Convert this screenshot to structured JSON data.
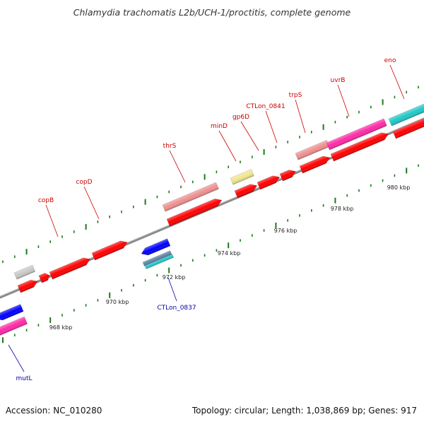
{
  "title": "Chlamydia trachomatis L2b/UCH-1/proctitis, complete genome",
  "footer": {
    "accession": "Accession: NC_010280",
    "summary": "Topology: circular; Length: 1,038,869 bp; Genes: 917"
  },
  "colors": {
    "backbone": "#8c8c8c",
    "ticks": "#1a7a1a",
    "label_forward": "#cc0000",
    "label_reverse": "#0000aa",
    "red": "#ff0000",
    "pink": "#f09090",
    "magenta": "#ff2aa8",
    "gray": "#c8c8c8",
    "yellow": "#f0e68c",
    "cyan": "#20c8c8",
    "blue": "#0000ff",
    "steel": "#5f84a8"
  },
  "kbp_labels": [
    {
      "text": "968 kbp",
      "kbp": 968
    },
    {
      "text": "970 kbp",
      "kbp": 970
    },
    {
      "text": "972 kbp",
      "kbp": 972
    },
    {
      "text": "974 kbp",
      "kbp": 974
    },
    {
      "text": "976 kbp",
      "kbp": 976
    },
    {
      "text": "978 kbp",
      "kbp": 978
    },
    {
      "text": "980 kbp",
      "kbp": 980
    }
  ],
  "gene_labels": [
    {
      "name": "copB",
      "strand": "forward"
    },
    {
      "name": "copD",
      "strand": "forward"
    },
    {
      "name": "thrS",
      "strand": "forward"
    },
    {
      "name": "minD",
      "strand": "forward"
    },
    {
      "name": "gp6D",
      "strand": "forward"
    },
    {
      "name": "CTLon_0841",
      "strand": "forward"
    },
    {
      "name": "trpS",
      "strand": "forward"
    },
    {
      "name": "uvrB",
      "strand": "forward"
    },
    {
      "name": "eno",
      "strand": "forward"
    },
    {
      "name": "CTLon_0837",
      "strand": "reverse"
    },
    {
      "name": "mutL",
      "strand": "reverse"
    }
  ]
}
